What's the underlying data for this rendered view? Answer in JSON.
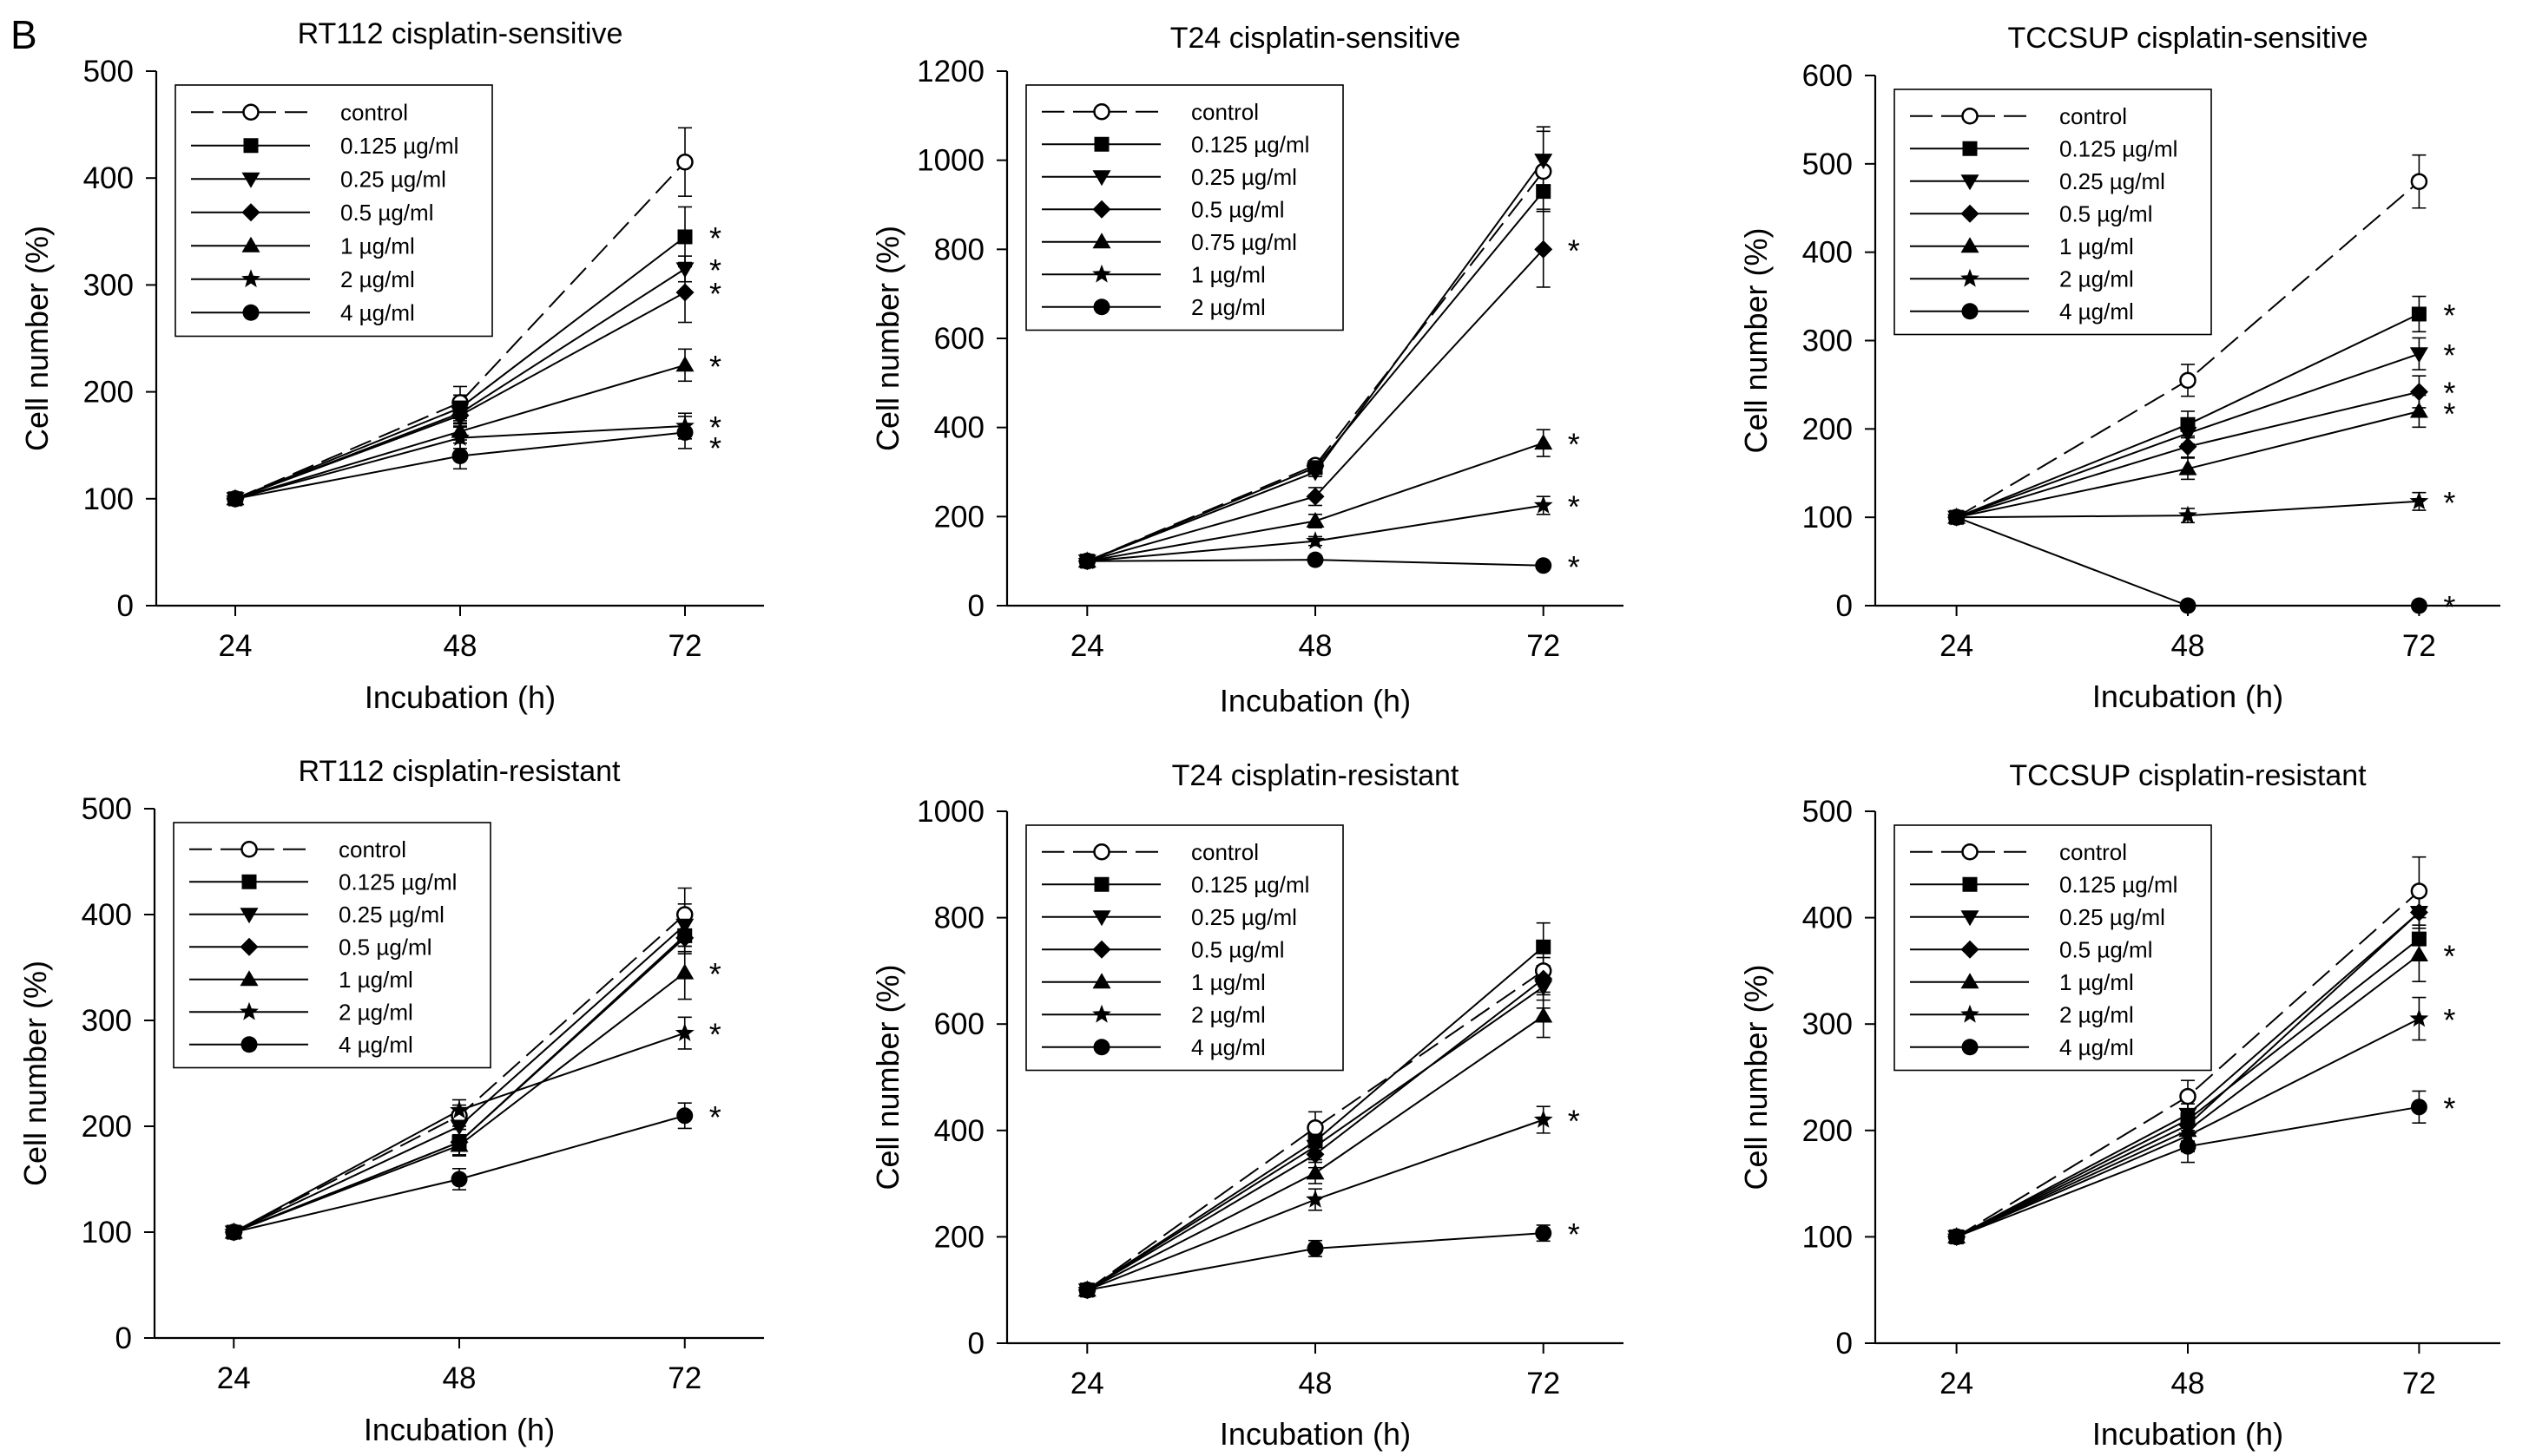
{
  "figure": {
    "panel_label": "B"
  },
  "chart_data": [
    {
      "type": "line",
      "title": "RT112 cisplatin-sensitive",
      "xlabel": "Incubation (h)",
      "ylabel": "Cell number (%)",
      "x": [
        24,
        48,
        72
      ],
      "ylim": [
        0,
        500
      ],
      "yticks": [
        0,
        100,
        200,
        300,
        400,
        500
      ],
      "legend_position": "top-left",
      "grid": false,
      "series": [
        {
          "name": "control",
          "marker": "open-circle",
          "dashed": true,
          "values": [
            100,
            190,
            415
          ],
          "errors": [
            0,
            15,
            32
          ]
        },
        {
          "name": "0.125 µg/ml",
          "marker": "square",
          "values": [
            100,
            185,
            345
          ],
          "errors": [
            0,
            12,
            28
          ]
        },
        {
          "name": "0.25 µg/ml",
          "marker": "triangle-down",
          "values": [
            100,
            180,
            315
          ],
          "errors": [
            0,
            10,
            12
          ]
        },
        {
          "name": "0.5 µg/ml",
          "marker": "diamond",
          "values": [
            100,
            178,
            293
          ],
          "errors": [
            0,
            10,
            28
          ]
        },
        {
          "name": "1 µg/ml",
          "marker": "triangle-up",
          "values": [
            100,
            163,
            225
          ],
          "errors": [
            0,
            8,
            15
          ]
        },
        {
          "name": "2 µg/ml",
          "marker": "star",
          "values": [
            100,
            157,
            168
          ],
          "errors": [
            0,
            10,
            12
          ]
        },
        {
          "name": "4 µg/ml",
          "marker": "circle",
          "values": [
            100,
            140,
            162
          ],
          "errors": [
            0,
            12,
            15
          ]
        }
      ],
      "annotations": [
        "*",
        "*",
        "*",
        "*",
        "*",
        "*"
      ],
      "annotation_series": [
        1,
        2,
        3,
        4,
        5,
        6
      ]
    },
    {
      "type": "line",
      "title": "T24 cisplatin-sensitive",
      "xlabel": "Incubation (h)",
      "ylabel": "Cell number (%)",
      "x": [
        24,
        48,
        72
      ],
      "ylim": [
        0,
        1200
      ],
      "yticks": [
        0,
        200,
        400,
        600,
        800,
        1000,
        1200
      ],
      "legend_position": "top-left",
      "grid": false,
      "series": [
        {
          "name": "control",
          "marker": "open-circle",
          "dashed": true,
          "values": [
            100,
            315,
            975
          ],
          "errors": [
            0,
            10,
            90
          ]
        },
        {
          "name": "0.125 µg/ml",
          "marker": "square",
          "values": [
            100,
            310,
            930
          ],
          "errors": [
            0,
            10,
            40
          ]
        },
        {
          "name": "0.25 µg/ml",
          "marker": "triangle-down",
          "values": [
            100,
            300,
            1000
          ],
          "errors": [
            0,
            10,
            75
          ]
        },
        {
          "name": "0.5 µg/ml",
          "marker": "diamond",
          "values": [
            100,
            245,
            800
          ],
          "errors": [
            0,
            20,
            85
          ]
        },
        {
          "name": "0.75 µg/ml",
          "marker": "triangle-up",
          "values": [
            100,
            190,
            365
          ],
          "errors": [
            0,
            15,
            30
          ]
        },
        {
          "name": "1 µg/ml",
          "marker": "star",
          "values": [
            100,
            145,
            225
          ],
          "errors": [
            0,
            10,
            20
          ]
        },
        {
          "name": "2 µg/ml",
          "marker": "circle",
          "values": [
            100,
            103,
            90
          ],
          "errors": [
            0,
            8,
            8
          ]
        }
      ],
      "annotations": [
        "*",
        "*",
        "*",
        "*"
      ],
      "annotation_series": [
        3,
        4,
        5,
        6
      ]
    },
    {
      "type": "line",
      "title": "TCCSUP cisplatin-sensitive",
      "xlabel": "Incubation (h)",
      "ylabel": "Cell number (%)",
      "x": [
        24,
        48,
        72
      ],
      "ylim": [
        0,
        600
      ],
      "yticks": [
        0,
        100,
        200,
        300,
        400,
        500,
        600
      ],
      "legend_position": "top-left",
      "grid": false,
      "series": [
        {
          "name": "control",
          "marker": "open-circle",
          "dashed": true,
          "values": [
            100,
            255,
            480
          ],
          "errors": [
            0,
            18,
            30
          ]
        },
        {
          "name": "0.125 µg/ml",
          "marker": "square",
          "values": [
            100,
            205,
            330
          ],
          "errors": [
            0,
            15,
            20
          ]
        },
        {
          "name": "0.25 µg/ml",
          "marker": "triangle-down",
          "values": [
            100,
            195,
            285
          ],
          "errors": [
            0,
            12,
            18
          ]
        },
        {
          "name": "0.5 µg/ml",
          "marker": "diamond",
          "values": [
            100,
            180,
            242
          ],
          "errors": [
            0,
            12,
            18
          ]
        },
        {
          "name": "1 µg/ml",
          "marker": "triangle-up",
          "values": [
            100,
            155,
            220
          ],
          "errors": [
            0,
            12,
            18
          ]
        },
        {
          "name": "2 µg/ml",
          "marker": "star",
          "values": [
            100,
            102,
            118
          ],
          "errors": [
            0,
            8,
            10
          ]
        },
        {
          "name": "4 µg/ml",
          "marker": "circle",
          "values": [
            100,
            0,
            0
          ],
          "errors": [
            0,
            0,
            0
          ]
        }
      ],
      "annotations": [
        "*",
        "*",
        "*",
        "*",
        "*",
        "*"
      ],
      "annotation_series": [
        1,
        2,
        3,
        4,
        5,
        6
      ]
    },
    {
      "type": "line",
      "title": "RT112 cisplatin-resistant",
      "xlabel": "Incubation (h)",
      "ylabel": "Cell number (%)",
      "x": [
        24,
        48,
        72
      ],
      "ylim": [
        0,
        500
      ],
      "yticks": [
        0,
        100,
        200,
        300,
        400,
        500
      ],
      "legend_position": "top-left",
      "grid": false,
      "series": [
        {
          "name": "control",
          "marker": "open-circle",
          "dashed": true,
          "values": [
            100,
            210,
            400
          ],
          "errors": [
            0,
            10,
            25
          ]
        },
        {
          "name": "0.125 µg/ml",
          "marker": "square",
          "values": [
            100,
            185,
            380
          ],
          "errors": [
            0,
            12,
            15
          ]
        },
        {
          "name": "0.25 µg/ml",
          "marker": "triangle-down",
          "values": [
            100,
            200,
            390
          ],
          "errors": [
            0,
            12,
            20
          ]
        },
        {
          "name": "0.5 µg/ml",
          "marker": "diamond",
          "values": [
            100,
            185,
            378
          ],
          "errors": [
            0,
            12,
            15
          ]
        },
        {
          "name": "1 µg/ml",
          "marker": "triangle-up",
          "values": [
            100,
            182,
            345
          ],
          "errors": [
            0,
            10,
            25
          ]
        },
        {
          "name": "2 µg/ml",
          "marker": "star",
          "values": [
            100,
            215,
            288
          ],
          "errors": [
            0,
            10,
            15
          ]
        },
        {
          "name": "4 µg/ml",
          "marker": "circle",
          "values": [
            100,
            150,
            210
          ],
          "errors": [
            0,
            10,
            12
          ]
        }
      ],
      "annotations": [
        "*",
        "*",
        "*"
      ],
      "annotation_series": [
        4,
        5,
        6
      ]
    },
    {
      "type": "line",
      "title": "T24 cisplatin-resistant",
      "xlabel": "Incubation (h)",
      "ylabel": "Cell number (%)",
      "x": [
        24,
        48,
        72
      ],
      "ylim": [
        0,
        1000
      ],
      "yticks": [
        0,
        200,
        400,
        600,
        800,
        1000
      ],
      "legend_position": "top-left",
      "grid": false,
      "series": [
        {
          "name": "control",
          "marker": "open-circle",
          "dashed": true,
          "values": [
            100,
            405,
            700
          ],
          "errors": [
            0,
            30,
            40
          ]
        },
        {
          "name": "0.125 µg/ml",
          "marker": "square",
          "values": [
            100,
            380,
            745
          ],
          "errors": [
            0,
            25,
            45
          ]
        },
        {
          "name": "0.25 µg/ml",
          "marker": "triangle-down",
          "values": [
            100,
            370,
            670
          ],
          "errors": [
            0,
            25,
            40
          ]
        },
        {
          "name": "0.5 µg/ml",
          "marker": "diamond",
          "values": [
            100,
            355,
            685
          ],
          "errors": [
            0,
            25,
            40
          ]
        },
        {
          "name": "1 µg/ml",
          "marker": "triangle-up",
          "values": [
            100,
            320,
            615
          ],
          "errors": [
            0,
            20,
            40
          ]
        },
        {
          "name": "2 µg/ml",
          "marker": "star",
          "values": [
            100,
            270,
            420
          ],
          "errors": [
            0,
            20,
            25
          ]
        },
        {
          "name": "4 µg/ml",
          "marker": "circle",
          "values": [
            100,
            178,
            207
          ],
          "errors": [
            0,
            15,
            15
          ]
        }
      ],
      "annotations": [
        "*",
        "*"
      ],
      "annotation_series": [
        5,
        6
      ]
    },
    {
      "type": "line",
      "title": "TCCSUP cisplatin-resistant",
      "xlabel": "Incubation (h)",
      "ylabel": "Cell number (%)",
      "x": [
        24,
        48,
        72
      ],
      "ylim": [
        0,
        500
      ],
      "yticks": [
        0,
        100,
        200,
        300,
        400,
        500
      ],
      "legend_position": "top-left",
      "grid": false,
      "series": [
        {
          "name": "control",
          "marker": "open-circle",
          "dashed": true,
          "values": [
            100,
            232,
            425
          ],
          "errors": [
            0,
            15,
            32
          ]
        },
        {
          "name": "0.125 µg/ml",
          "marker": "square",
          "values": [
            100,
            210,
            380
          ],
          "errors": [
            0,
            15,
            20
          ]
        },
        {
          "name": "0.25 µg/ml",
          "marker": "triangle-down",
          "values": [
            100,
            215,
            405
          ],
          "errors": [
            0,
            15,
            20
          ]
        },
        {
          "name": "0.5 µg/ml",
          "marker": "diamond",
          "values": [
            100,
            205,
            405
          ],
          "errors": [
            0,
            15,
            20
          ]
        },
        {
          "name": "1 µg/ml",
          "marker": "triangle-up",
          "values": [
            100,
            200,
            365
          ],
          "errors": [
            0,
            15,
            25
          ]
        },
        {
          "name": "2 µg/ml",
          "marker": "star",
          "values": [
            100,
            195,
            305
          ],
          "errors": [
            0,
            15,
            20
          ]
        },
        {
          "name": "4 µg/ml",
          "marker": "circle",
          "values": [
            100,
            185,
            222
          ],
          "errors": [
            0,
            15,
            15
          ]
        }
      ],
      "annotations": [
        "*",
        "*",
        "*"
      ],
      "annotation_series": [
        4,
        5,
        6
      ]
    }
  ]
}
